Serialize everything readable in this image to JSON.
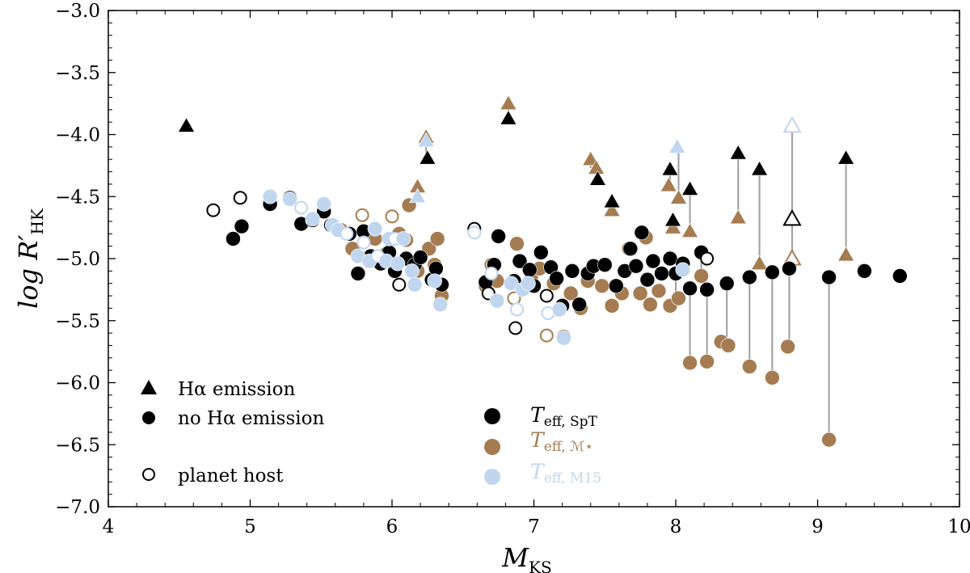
{
  "chart_data": {
    "type": "scatter",
    "xlabel": "M",
    "xlabel_sub": "KS",
    "ylabel": "log R′",
    "ylabel_sub": "HK",
    "xlim": [
      4,
      10
    ],
    "ylim": [
      -7.0,
      -3.0
    ],
    "xticks": [
      "4",
      "5",
      "6",
      "7",
      "8",
      "9",
      "10"
    ],
    "yticks": [
      "−3.0",
      "−3.5",
      "−4.0",
      "−4.5",
      "−5.0",
      "−5.5",
      "−6.0",
      "−6.5",
      "−7.0"
    ],
    "colors": {
      "spt": "#000000",
      "mstar": "#a57c52",
      "m15": "#c0d6ef",
      "connector": "#9e9e9e"
    },
    "legend_markers": [
      {
        "marker": "triangle",
        "filled": true,
        "label": "Hα emission"
      },
      {
        "marker": "circle",
        "filled": true,
        "label": "no Hα emission"
      },
      {
        "marker": "circle",
        "filled": false,
        "label": "planet host"
      }
    ],
    "legend_series": [
      {
        "key": "spt",
        "label_main": "T",
        "label_sub": "eff, SpT"
      },
      {
        "key": "mstar",
        "label_main": "T",
        "label_sub": "eff, ℳ⋆"
      },
      {
        "key": "m15",
        "label_main": "T",
        "label_sub": "eff, M15"
      }
    ],
    "series": {
      "spt": [
        [
          4.55,
          -3.93,
          "t",
          1
        ],
        [
          4.74,
          -4.61,
          "c",
          0
        ],
        [
          4.88,
          -4.84,
          "c",
          1
        ],
        [
          4.93,
          -4.51,
          "c",
          0
        ],
        [
          4.94,
          -4.74,
          "c",
          1
        ],
        [
          5.14,
          -4.56,
          "c",
          1
        ],
        [
          5.28,
          -4.51,
          "c",
          1
        ],
        [
          5.36,
          -4.72,
          "c",
          1
        ],
        [
          5.44,
          -4.69,
          "c",
          1
        ],
        [
          5.52,
          -4.62,
          "c",
          1
        ],
        [
          5.57,
          -4.73,
          "c",
          1
        ],
        [
          5.7,
          -4.8,
          "c",
          1
        ],
        [
          5.76,
          -5.12,
          "c",
          1
        ],
        [
          5.8,
          -4.78,
          "c",
          1
        ],
        [
          5.85,
          -4.98,
          "c",
          1
        ],
        [
          5.92,
          -5.04,
          "c",
          1
        ],
        [
          5.98,
          -4.95,
          "c",
          1
        ],
        [
          6.02,
          -5.1,
          "c",
          1
        ],
        [
          6.05,
          -5.21,
          "c",
          0
        ],
        [
          6.1,
          -5.0,
          "c",
          1
        ],
        [
          6.16,
          -5.05,
          "c",
          1
        ],
        [
          6.2,
          -4.99,
          "c",
          1
        ],
        [
          6.25,
          -4.19,
          "t",
          1
        ],
        [
          6.28,
          -5.17,
          "c",
          1
        ],
        [
          6.31,
          -5.08,
          "c",
          1
        ],
        [
          6.35,
          -5.21,
          "c",
          1
        ],
        [
          6.58,
          -4.76,
          "c",
          0
        ],
        [
          6.66,
          -5.19,
          "c",
          1
        ],
        [
          6.68,
          -5.28,
          "c",
          0
        ],
        [
          6.72,
          -5.05,
          "c",
          1
        ],
        [
          6.75,
          -4.82,
          "c",
          1
        ],
        [
          6.82,
          -3.87,
          "t",
          1
        ],
        [
          6.86,
          -5.18,
          "c",
          1
        ],
        [
          6.87,
          -5.56,
          "c",
          0
        ],
        [
          6.9,
          -5.02,
          "c",
          1
        ],
        [
          6.97,
          -5.09,
          "c",
          1
        ],
        [
          7.0,
          -5.22,
          "c",
          1
        ],
        [
          7.05,
          -4.95,
          "c",
          1
        ],
        [
          7.09,
          -5.3,
          "c",
          0
        ],
        [
          7.12,
          -5.07,
          "c",
          1
        ],
        [
          7.16,
          -5.16,
          "c",
          1
        ],
        [
          7.2,
          -5.38,
          "c",
          1
        ],
        [
          7.27,
          -5.1,
          "c",
          1
        ],
        [
          7.32,
          -5.37,
          "c",
          1
        ],
        [
          7.38,
          -5.12,
          "c",
          1
        ],
        [
          7.42,
          -5.06,
          "c",
          1
        ],
        [
          7.45,
          -4.36,
          "t",
          1
        ],
        [
          7.5,
          -5.05,
          "c",
          1
        ],
        [
          7.55,
          -4.54,
          "t",
          1
        ],
        [
          7.58,
          -5.22,
          "c",
          1
        ],
        [
          7.64,
          -5.1,
          "c",
          1
        ],
        [
          7.68,
          -4.92,
          "c",
          1
        ],
        [
          7.72,
          -5.06,
          "c",
          1
        ],
        [
          7.76,
          -4.79,
          "c",
          1
        ],
        [
          7.8,
          -5.17,
          "c",
          1
        ],
        [
          7.84,
          -5.02,
          "c",
          1
        ],
        [
          7.9,
          -5.12,
          "c",
          1
        ],
        [
          7.96,
          -4.28,
          "t",
          1
        ],
        [
          7.96,
          -5.0,
          "c",
          1
        ],
        [
          7.98,
          -4.69,
          "t",
          1
        ],
        [
          8.0,
          -5.12,
          "c",
          1
        ],
        [
          8.05,
          -5.04,
          "c",
          1
        ],
        [
          8.1,
          -4.44,
          "t",
          1
        ],
        [
          8.1,
          -5.24,
          "c",
          1
        ],
        [
          8.18,
          -4.95,
          "c",
          1
        ],
        [
          8.22,
          -5.0,
          "c",
          0
        ],
        [
          8.22,
          -5.25,
          "c",
          1
        ],
        [
          8.36,
          -5.2,
          "c",
          1
        ],
        [
          8.44,
          -4.15,
          "t",
          1
        ],
        [
          8.52,
          -5.15,
          "c",
          1
        ],
        [
          8.59,
          -4.28,
          "t",
          1
        ],
        [
          8.68,
          -5.11,
          "c",
          1
        ],
        [
          8.8,
          -5.08,
          "c",
          1
        ],
        [
          8.82,
          -4.68,
          "t",
          0
        ],
        [
          9.08,
          -5.15,
          "c",
          1
        ],
        [
          9.2,
          -4.19,
          "t",
          1
        ],
        [
          9.33,
          -5.1,
          "c",
          1
        ],
        [
          9.58,
          -5.14,
          "c",
          1
        ]
      ],
      "mstar": [
        [
          5.64,
          -4.77,
          "c",
          1
        ],
        [
          5.72,
          -4.92,
          "c",
          1
        ],
        [
          5.79,
          -4.65,
          "c",
          0
        ],
        [
          5.88,
          -4.84,
          "c",
          1
        ],
        [
          5.96,
          -4.96,
          "c",
          1
        ],
        [
          6.0,
          -4.66,
          "c",
          0
        ],
        [
          6.05,
          -4.8,
          "c",
          1
        ],
        [
          6.1,
          -4.85,
          "c",
          1
        ],
        [
          6.12,
          -4.57,
          "c",
          1
        ],
        [
          6.18,
          -4.42,
          "t",
          1
        ],
        [
          6.18,
          -5.1,
          "c",
          1
        ],
        [
          6.24,
          -4.02,
          "t",
          1
        ],
        [
          6.26,
          -4.92,
          "c",
          1
        ],
        [
          6.3,
          -5.05,
          "c",
          1
        ],
        [
          6.32,
          -4.84,
          "c",
          1
        ],
        [
          6.35,
          -5.3,
          "c",
          1
        ],
        [
          6.66,
          -5.22,
          "c",
          1
        ],
        [
          6.7,
          -5.05,
          "c",
          0
        ],
        [
          6.74,
          -5.18,
          "c",
          1
        ],
        [
          6.82,
          -3.75,
          "t",
          1
        ],
        [
          6.86,
          -5.32,
          "c",
          0
        ],
        [
          6.88,
          -4.88,
          "c",
          1
        ],
        [
          6.93,
          -5.24,
          "c",
          1
        ],
        [
          6.98,
          -5.16,
          "c",
          1
        ],
        [
          7.04,
          -5.08,
          "c",
          1
        ],
        [
          7.09,
          -5.62,
          "c",
          0
        ],
        [
          7.14,
          -5.2,
          "c",
          1
        ],
        [
          7.21,
          -5.63,
          "c",
          1
        ],
        [
          7.26,
          -5.28,
          "c",
          1
        ],
        [
          7.33,
          -5.4,
          "c",
          1
        ],
        [
          7.38,
          -5.18,
          "c",
          1
        ],
        [
          7.4,
          -4.2,
          "t",
          1
        ],
        [
          7.44,
          -4.27,
          "t",
          1
        ],
        [
          7.48,
          -5.22,
          "c",
          1
        ],
        [
          7.55,
          -4.61,
          "t",
          1
        ],
        [
          7.55,
          -5.38,
          "c",
          1
        ],
        [
          7.62,
          -5.28,
          "c",
          1
        ],
        [
          7.67,
          -4.92,
          "c",
          1
        ],
        [
          7.75,
          -5.28,
          "c",
          1
        ],
        [
          7.79,
          -4.83,
          "c",
          1
        ],
        [
          7.82,
          -5.37,
          "c",
          1
        ],
        [
          7.88,
          -5.26,
          "c",
          1
        ],
        [
          7.95,
          -4.41,
          "t",
          1
        ],
        [
          7.98,
          -4.75,
          "t",
          1
        ],
        [
          8.02,
          -4.51,
          "t",
          1
        ],
        [
          7.96,
          -5.38,
          "c",
          1
        ],
        [
          8.02,
          -5.32,
          "c",
          1
        ],
        [
          8.1,
          -4.78,
          "t",
          1
        ],
        [
          8.1,
          -5.84,
          "c",
          1
        ],
        [
          8.18,
          -5.14,
          "c",
          1
        ],
        [
          8.22,
          -5.83,
          "c",
          1
        ],
        [
          8.32,
          -5.67,
          "c",
          1
        ],
        [
          8.37,
          -5.7,
          "c",
          1
        ],
        [
          8.44,
          -4.67,
          "t",
          1
        ],
        [
          8.52,
          -5.87,
          "c",
          1
        ],
        [
          8.59,
          -5.04,
          "t",
          1
        ],
        [
          8.68,
          -5.96,
          "c",
          1
        ],
        [
          8.79,
          -5.71,
          "c",
          1
        ],
        [
          8.82,
          -5.0,
          "t",
          0
        ],
        [
          9.08,
          -6.46,
          "c",
          1
        ],
        [
          9.2,
          -4.97,
          "t",
          1
        ]
      ],
      "m15": [
        [
          5.14,
          -4.5,
          "c",
          1
        ],
        [
          5.28,
          -4.52,
          "c",
          1
        ],
        [
          5.36,
          -4.59,
          "c",
          0
        ],
        [
          5.44,
          -4.68,
          "c",
          1
        ],
        [
          5.52,
          -4.56,
          "c",
          1
        ],
        [
          5.58,
          -4.73,
          "c",
          1
        ],
        [
          5.62,
          -4.77,
          "c",
          1
        ],
        [
          5.68,
          -4.8,
          "c",
          0
        ],
        [
          5.76,
          -4.98,
          "c",
          1
        ],
        [
          5.8,
          -4.87,
          "c",
          0
        ],
        [
          5.84,
          -5.02,
          "c",
          1
        ],
        [
          5.88,
          -4.76,
          "c",
          1
        ],
        [
          5.9,
          -4.98,
          "c",
          0
        ],
        [
          5.96,
          -5.02,
          "c",
          1
        ],
        [
          5.98,
          -4.84,
          "c",
          1
        ],
        [
          6.02,
          -4.84,
          "c",
          0
        ],
        [
          6.04,
          -5.04,
          "c",
          1
        ],
        [
          6.08,
          -4.84,
          "c",
          1
        ],
        [
          6.14,
          -5.1,
          "c",
          1
        ],
        [
          6.16,
          -5.21,
          "c",
          1
        ],
        [
          6.18,
          -4.5,
          "t",
          1
        ],
        [
          6.24,
          -4.05,
          "t",
          1
        ],
        [
          6.3,
          -5.18,
          "c",
          1
        ],
        [
          6.34,
          -5.37,
          "c",
          1
        ],
        [
          6.58,
          -4.79,
          "c",
          0
        ],
        [
          6.7,
          -5.12,
          "c",
          0
        ],
        [
          6.74,
          -5.34,
          "c",
          1
        ],
        [
          6.84,
          -5.2,
          "c",
          1
        ],
        [
          6.88,
          -5.41,
          "c",
          0
        ],
        [
          6.92,
          -5.25,
          "c",
          1
        ],
        [
          6.96,
          -5.2,
          "c",
          1
        ],
        [
          7.1,
          -5.44,
          "c",
          0
        ],
        [
          7.18,
          -5.41,
          "c",
          1
        ],
        [
          7.21,
          -5.64,
          "c",
          1
        ],
        [
          8.01,
          -4.1,
          "t",
          1
        ],
        [
          8.05,
          -5.09,
          "c",
          1
        ],
        [
          8.82,
          -3.93,
          "t",
          0
        ]
      ]
    },
    "connectors": [
      [
        8.0,
        -5.12,
        -5.32
      ],
      [
        8.1,
        -4.44,
        -4.78
      ],
      [
        8.1,
        -5.24,
        -5.84
      ],
      [
        8.22,
        -5.25,
        -5.83
      ],
      [
        8.36,
        -5.2,
        -5.7
      ],
      [
        8.44,
        -4.15,
        -4.67
      ],
      [
        8.52,
        -5.15,
        -5.87
      ],
      [
        8.59,
        -4.28,
        -5.04
      ],
      [
        8.68,
        -5.11,
        -5.96
      ],
      [
        8.8,
        -5.08,
        -5.71
      ],
      [
        8.82,
        -3.93,
        -5.0
      ],
      [
        9.08,
        -5.15,
        -6.46
      ],
      [
        9.2,
        -4.19,
        -4.97
      ],
      [
        7.96,
        -4.28,
        -4.41
      ],
      [
        7.98,
        -4.69,
        -4.75
      ],
      [
        7.55,
        -4.54,
        -4.61
      ],
      [
        7.76,
        -4.79,
        -4.83
      ],
      [
        8.18,
        -4.95,
        -5.14
      ],
      [
        6.24,
        -4.02,
        -4.19
      ],
      [
        6.82,
        -3.75,
        -3.87
      ],
      [
        7.4,
        -4.2,
        -4.27
      ],
      [
        8.02,
        -4.1,
        -4.51
      ]
    ]
  }
}
